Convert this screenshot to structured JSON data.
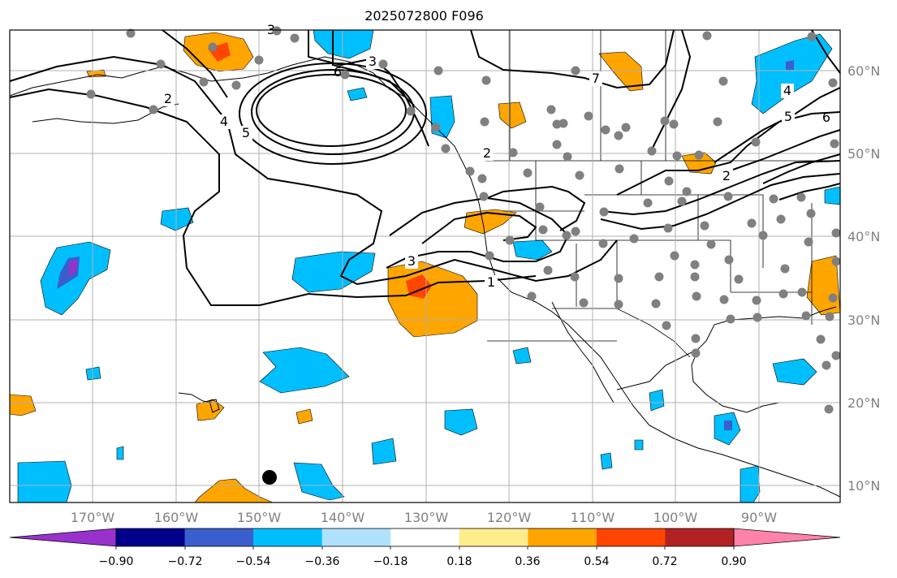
{
  "title": "2025072800 F096",
  "lon_labels": [
    "170°W",
    "160°W",
    "150°W",
    "140°W",
    "130°W",
    "120°W",
    "110°W",
    "100°W",
    "90°W"
  ],
  "lat_labels": [
    "60°N",
    "50°N",
    "40°N",
    "30°N",
    "20°N",
    "10°N"
  ],
  "contour_labels": [
    "1",
    "3",
    "3",
    "3",
    "4",
    "5",
    "2",
    "7",
    "6",
    "6",
    "5",
    "4",
    "2",
    "2"
  ],
  "colorbar": {
    "tick_labels": [
      "−0.90",
      "−0.72",
      "−0.54",
      "−0.36",
      "−0.18",
      "0.18",
      "0.36",
      "0.54",
      "0.72",
      "0.90"
    ],
    "colors": [
      "#9932cc",
      "#00008b",
      "#3a5fcd",
      "#00bfff",
      "#b0e2ff",
      "#ffffff",
      "#ffec8b",
      "#ffa500",
      "#ff4500",
      "#b22222",
      "#ff82ab"
    ]
  },
  "colors": {
    "positive": "#ffa500",
    "positive_strong": "#ff4500",
    "negative": "#00bfff",
    "negative_strong": "#3a5fcd",
    "negative_max": "#9932cc",
    "station_dot": "#808080",
    "grid": "#b0b0b0"
  }
}
